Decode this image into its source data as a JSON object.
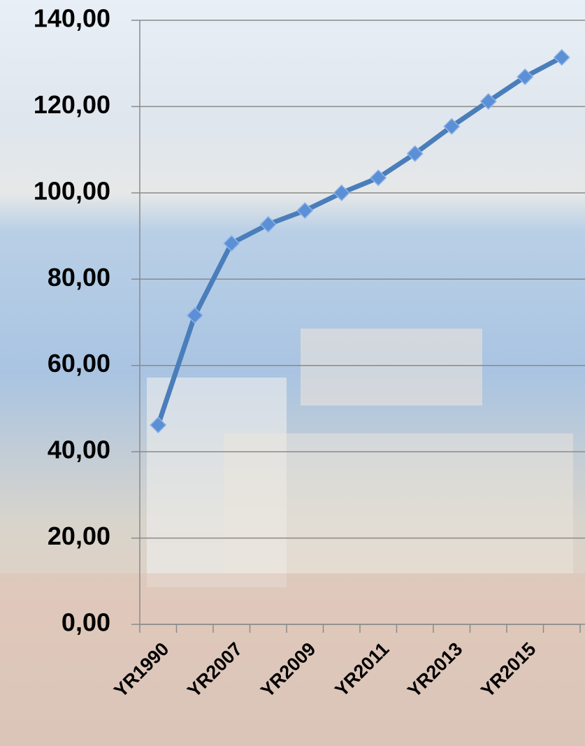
{
  "chart_data": {
    "type": "line",
    "categories": [
      "YR1990",
      null,
      "YR2007",
      null,
      "YR2009",
      null,
      "YR2011",
      null,
      "YR2013",
      null,
      "YR2015",
      null
    ],
    "series": [
      {
        "name": null,
        "color": "#4a7ebb",
        "values": [
          46.2,
          71.6,
          88.3,
          92.7,
          95.9,
          100.0,
          103.5,
          109.1,
          115.4,
          121.2,
          126.9,
          131.4
        ]
      }
    ],
    "ylim": [
      0,
      140
    ],
    "yticks": [
      {
        "value": 0,
        "label": "0,00"
      },
      {
        "value": 20,
        "label": "20,00"
      },
      {
        "value": 40,
        "label": "40,00"
      },
      {
        "value": 60,
        "label": "60,00"
      },
      {
        "value": 80,
        "label": "80,00"
      },
      {
        "value": 100,
        "label": "100,00"
      },
      {
        "value": 120,
        "label": "120,00"
      },
      {
        "value": 140,
        "label": "140,00"
      }
    ],
    "grid": true
  }
}
